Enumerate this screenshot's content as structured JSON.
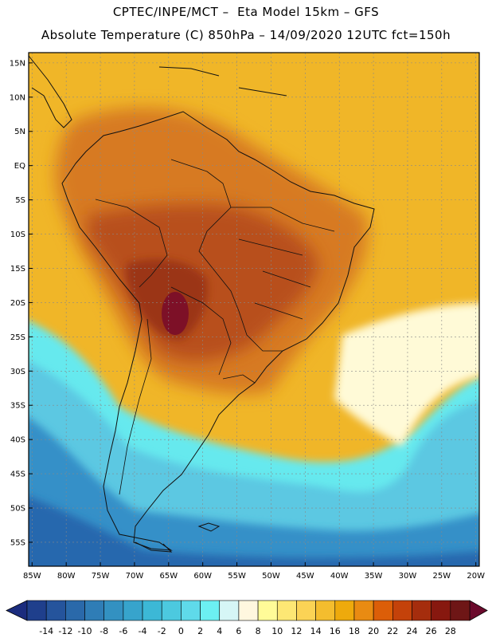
{
  "header": {
    "line1": "CPTEC/INPE/MCT –  Eta Model 15km – GFS",
    "line2": "Absolute Temperature (C) 850hPa – 14/09/2020 12UTC fct=150h"
  },
  "map": {
    "lon_range": [
      -85.5,
      -19.5
    ],
    "lat_range": [
      -58.5,
      16.5
    ],
    "lat_ticks": [
      {
        "value": 15,
        "label": "15N"
      },
      {
        "value": 10,
        "label": "10N"
      },
      {
        "value": 5,
        "label": "5N"
      },
      {
        "value": 0,
        "label": "EQ"
      },
      {
        "value": -5,
        "label": "5S"
      },
      {
        "value": -10,
        "label": "10S"
      },
      {
        "value": -15,
        "label": "15S"
      },
      {
        "value": -20,
        "label": "20S"
      },
      {
        "value": -25,
        "label": "25S"
      },
      {
        "value": -30,
        "label": "30S"
      },
      {
        "value": -35,
        "label": "35S"
      },
      {
        "value": -40,
        "label": "40S"
      },
      {
        "value": -45,
        "label": "45S"
      },
      {
        "value": -50,
        "label": "50S"
      },
      {
        "value": -55,
        "label": "55S"
      }
    ],
    "lon_ticks": [
      {
        "value": -85,
        "label": "85W"
      },
      {
        "value": -80,
        "label": "80W"
      },
      {
        "value": -75,
        "label": "75W"
      },
      {
        "value": -70,
        "label": "70W"
      },
      {
        "value": -65,
        "label": "65W"
      },
      {
        "value": -60,
        "label": "60W"
      },
      {
        "value": -55,
        "label": "55W"
      },
      {
        "value": -50,
        "label": "50W"
      },
      {
        "value": -45,
        "label": "45W"
      },
      {
        "value": -40,
        "label": "40W"
      },
      {
        "value": -35,
        "label": "35W"
      },
      {
        "value": -30,
        "label": "30W"
      },
      {
        "value": -25,
        "label": "25W"
      },
      {
        "value": -20,
        "label": "20W"
      }
    ],
    "colors": {
      "background": "#f0b628",
      "land_warm": "#d77a23",
      "land_hot": "#b8501a",
      "land_hotter": "#9b3617",
      "hot_core": "#7d1027",
      "pale": "#fffad7",
      "cold_light": "#66e9ee",
      "cold_mid": "#5bc8e2",
      "cold_deep": "#3590c8",
      "cold_deepest": "#2768ae",
      "coast": "#111111",
      "grid": "#888888"
    }
  },
  "colorbar": {
    "labels": [
      "-14",
      "-12",
      "-10",
      "-8",
      "-6",
      "-4",
      "-2",
      "0",
      "2",
      "4",
      "6",
      "8",
      "10",
      "12",
      "14",
      "16",
      "18",
      "20",
      "22",
      "24",
      "26",
      "28"
    ],
    "colors": [
      "#1f3f8c",
      "#25549c",
      "#2a69aa",
      "#2f7db6",
      "#3391c1",
      "#37a4cc",
      "#3cb8d6",
      "#4cc9df",
      "#5fdaea",
      "#6cf0f2",
      "#d6f6f6",
      "#fff7df",
      "#fffb98",
      "#fde774",
      "#fbd355",
      "#f4bd2e",
      "#eeaa0c",
      "#e98b12",
      "#dc5e08",
      "#c4420a",
      "#a52d0d",
      "#87180f",
      "#6e1616"
    ],
    "left_arrow_color": "#1b2c7e",
    "right_arrow_color": "#6b0a2c"
  }
}
